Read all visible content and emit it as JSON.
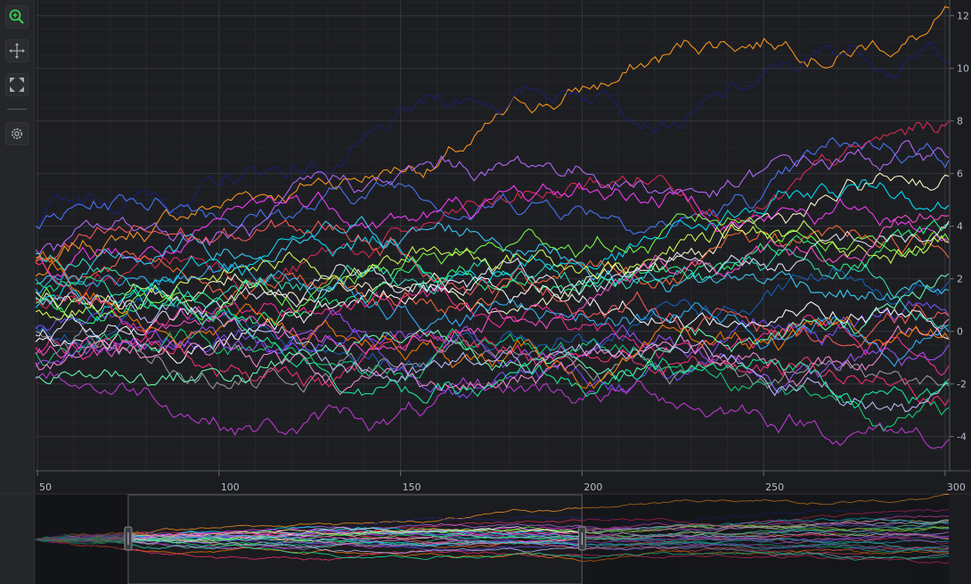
{
  "toolbar": {
    "buttons": [
      {
        "name": "zoom-icon",
        "icon": "magnifier-plus",
        "active": true
      },
      {
        "name": "pan-icon",
        "icon": "move-arrows",
        "active": false
      },
      {
        "name": "fit-icon",
        "icon": "expand-corners",
        "active": false
      },
      {
        "name": "settings-icon",
        "icon": "gear",
        "active": false
      }
    ],
    "accent": "#39d353"
  },
  "chart_data": {
    "type": "line",
    "title": "",
    "xlabel": "",
    "ylabel": "",
    "xlim": [
      49.5,
      301
    ],
    "ylim": [
      -5.3,
      12.6
    ],
    "grid": true,
    "x_ticks": [
      "50",
      "100",
      "150",
      "200",
      "250",
      "300"
    ],
    "y_ticks": [
      "-4",
      "-2",
      "0",
      "2",
      "4",
      "6",
      "8",
      "10",
      "12"
    ],
    "series_count": 32,
    "series_endpoints": [
      {
        "color": "#ff9a1f",
        "start": 2.1,
        "end": 12.3
      },
      {
        "color": "#1c1f7a",
        "start": 4.1,
        "end": 10.2
      },
      {
        "color": "#4a78ff",
        "start": 4.0,
        "end": 6.5
      },
      {
        "color": "#e02a55",
        "start": 1.2,
        "end": 8.0
      },
      {
        "color": "#ffffcc",
        "start": 1.5,
        "end": 5.9
      },
      {
        "color": "#b86cff",
        "start": 3.1,
        "end": 6.6
      },
      {
        "color": "#00e5ff",
        "start": 0.9,
        "end": 4.8
      },
      {
        "color": "#ff3cff",
        "start": 2.8,
        "end": 3.4
      },
      {
        "color": "#ff6a3a",
        "start": 2.6,
        "end": 2.8
      },
      {
        "color": "#2bff88",
        "start": 1.3,
        "end": 4.1
      },
      {
        "color": "#1560c0",
        "start": 0.2,
        "end": 1.9
      },
      {
        "color": "#7a4dff",
        "start": 0.1,
        "end": 0.6
      },
      {
        "color": "#ffffff",
        "start": -0.4,
        "end": -0.3
      },
      {
        "color": "#ff2d9b",
        "start": -0.6,
        "end": -1.3
      },
      {
        "color": "#9b9ba3",
        "start": 0.0,
        "end": -1.8
      },
      {
        "color": "#12d47a",
        "start": -0.8,
        "end": -2.9
      },
      {
        "color": "#c23ad8",
        "start": -1.8,
        "end": -4.1
      }
    ],
    "navigator": {
      "x_range": [
        49.5,
        301
      ],
      "window": [
        75,
        200
      ]
    }
  }
}
